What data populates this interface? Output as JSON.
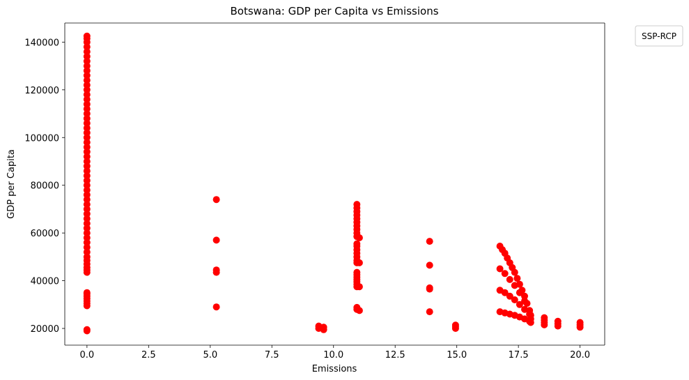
{
  "chart_data": {
    "type": "scatter",
    "title": "Botswana: GDP per Capita vs Emissions",
    "xlabel": "Emissions",
    "ylabel": "GDP per Capita",
    "xlim": [
      -0.9,
      21.0
    ],
    "ylim": [
      13000,
      148000
    ],
    "xticks": [
      0.0,
      2.5,
      5.0,
      7.5,
      10.0,
      12.5,
      15.0,
      17.5,
      20.0
    ],
    "xtick_labels": [
      "0.0",
      "2.5",
      "5.0",
      "7.5",
      "10.0",
      "12.5",
      "15.0",
      "17.5",
      "20.0"
    ],
    "yticks": [
      20000,
      40000,
      60000,
      80000,
      100000,
      120000,
      140000
    ],
    "ytick_labels": [
      "20000",
      "40000",
      "60000",
      "80000",
      "100000",
      "120000",
      "140000"
    ],
    "grid": false,
    "legend": {
      "title": "SSP-RCP",
      "placement": "outside-top-right",
      "entries": []
    },
    "marker_color": "#ff0000",
    "points": [
      [
        0,
        19000
      ],
      [
        0,
        19500
      ],
      [
        0,
        29500
      ],
      [
        0,
        30500
      ],
      [
        0,
        31500
      ],
      [
        0,
        32500
      ],
      [
        0,
        33500
      ],
      [
        0,
        34500
      ],
      [
        0,
        35000
      ],
      [
        0,
        43500
      ],
      [
        0,
        44500
      ],
      [
        0,
        45500
      ],
      [
        0,
        47000
      ],
      [
        0,
        48500
      ],
      [
        0,
        50000
      ],
      [
        0,
        52000
      ],
      [
        0,
        54000
      ],
      [
        0,
        56000
      ],
      [
        0,
        58000
      ],
      [
        0,
        60000
      ],
      [
        0,
        62000
      ],
      [
        0,
        64000
      ],
      [
        0,
        66000
      ],
      [
        0,
        68000
      ],
      [
        0,
        70000
      ],
      [
        0,
        72000
      ],
      [
        0,
        74000
      ],
      [
        0,
        76000
      ],
      [
        0,
        78000
      ],
      [
        0,
        80000
      ],
      [
        0,
        82000
      ],
      [
        0,
        84000
      ],
      [
        0,
        86000
      ],
      [
        0,
        88000
      ],
      [
        0,
        90000
      ],
      [
        0,
        92000
      ],
      [
        0,
        94000
      ],
      [
        0,
        96000
      ],
      [
        0,
        98000
      ],
      [
        0,
        100000
      ],
      [
        0,
        102000
      ],
      [
        0,
        104000
      ],
      [
        0,
        106000
      ],
      [
        0,
        108000
      ],
      [
        0,
        110000
      ],
      [
        0,
        112000
      ],
      [
        0,
        114000
      ],
      [
        0,
        116000
      ],
      [
        0,
        118000
      ],
      [
        0,
        120000
      ],
      [
        0,
        122000
      ],
      [
        0,
        124000
      ],
      [
        0,
        126000
      ],
      [
        0,
        128000
      ],
      [
        0,
        130000
      ],
      [
        0,
        132000
      ],
      [
        0,
        134000
      ],
      [
        0,
        136000
      ],
      [
        0,
        138000
      ],
      [
        0,
        140000
      ],
      [
        0,
        141500
      ],
      [
        0,
        142500
      ],
      [
        5.25,
        29000
      ],
      [
        5.25,
        43500
      ],
      [
        5.25,
        44500
      ],
      [
        5.25,
        57000
      ],
      [
        5.25,
        74000
      ],
      [
        9.4,
        20000
      ],
      [
        9.4,
        21000
      ],
      [
        9.6,
        19500
      ],
      [
        9.6,
        20500
      ],
      [
        10.95,
        28000
      ],
      [
        10.95,
        28800
      ],
      [
        10.95,
        37500
      ],
      [
        10.95,
        38500
      ],
      [
        10.95,
        39500
      ],
      [
        10.95,
        40500
      ],
      [
        10.95,
        41500
      ],
      [
        10.95,
        42500
      ],
      [
        10.95,
        43500
      ],
      [
        10.95,
        47500
      ],
      [
        10.95,
        48500
      ],
      [
        10.95,
        50000
      ],
      [
        10.95,
        51500
      ],
      [
        10.95,
        53000
      ],
      [
        10.95,
        54500
      ],
      [
        10.95,
        55500
      ],
      [
        10.95,
        58500
      ],
      [
        10.95,
        60000
      ],
      [
        10.95,
        61500
      ],
      [
        10.95,
        63000
      ],
      [
        10.95,
        64500
      ],
      [
        10.95,
        66000
      ],
      [
        10.95,
        67500
      ],
      [
        10.95,
        69000
      ],
      [
        10.95,
        70500
      ],
      [
        10.95,
        72000
      ],
      [
        11.05,
        27500
      ],
      [
        11.05,
        37500
      ],
      [
        11.05,
        47500
      ],
      [
        11.05,
        58000
      ],
      [
        13.9,
        27000
      ],
      [
        13.9,
        36500
      ],
      [
        13.9,
        37000
      ],
      [
        13.9,
        46500
      ],
      [
        13.9,
        56500
      ],
      [
        14.95,
        20000
      ],
      [
        14.95,
        20700
      ],
      [
        14.95,
        21400
      ],
      [
        16.75,
        27000
      ],
      [
        16.95,
        26500
      ],
      [
        17.15,
        26000
      ],
      [
        17.35,
        25500
      ],
      [
        17.55,
        24800
      ],
      [
        17.75,
        24000
      ],
      [
        17.95,
        23000
      ],
      [
        16.75,
        36000
      ],
      [
        16.95,
        35000
      ],
      [
        17.15,
        33500
      ],
      [
        17.35,
        32000
      ],
      [
        17.55,
        30000
      ],
      [
        17.75,
        28000
      ],
      [
        17.95,
        26000
      ],
      [
        16.75,
        45000
      ],
      [
        16.95,
        43000
      ],
      [
        17.15,
        40500
      ],
      [
        17.35,
        38000
      ],
      [
        17.55,
        35000
      ],
      [
        17.75,
        31500
      ],
      [
        17.95,
        27500
      ],
      [
        16.75,
        54500
      ],
      [
        16.85,
        53000
      ],
      [
        16.95,
        51500
      ],
      [
        17.05,
        49500
      ],
      [
        17.15,
        47500
      ],
      [
        17.25,
        45500
      ],
      [
        17.35,
        43500
      ],
      [
        17.45,
        41000
      ],
      [
        17.55,
        38500
      ],
      [
        17.65,
        36000
      ],
      [
        17.75,
        33500
      ],
      [
        17.85,
        30500
      ],
      [
        17.95,
        27500
      ],
      [
        18.0,
        22500
      ],
      [
        18.0,
        24000
      ],
      [
        18.0,
        25500
      ],
      [
        18.55,
        21500
      ],
      [
        18.55,
        22500
      ],
      [
        18.55,
        23500
      ],
      [
        18.55,
        24500
      ],
      [
        19.1,
        21000
      ],
      [
        19.1,
        22000
      ],
      [
        19.1,
        23000
      ],
      [
        20.0,
        20500
      ],
      [
        20.0,
        21500
      ],
      [
        20.0,
        22500
      ]
    ]
  }
}
